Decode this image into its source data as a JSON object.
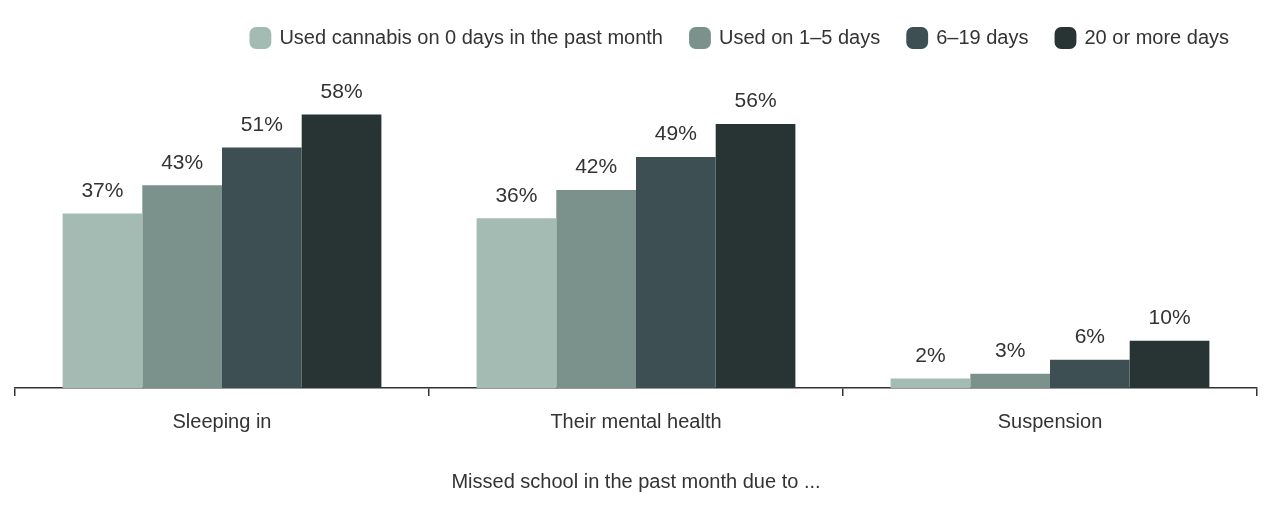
{
  "chart_data": {
    "type": "bar",
    "xlabel": "Missed school in the past month due to ...",
    "categories": [
      "Sleeping in",
      "Their mental health",
      "Suspension"
    ],
    "legend": "top",
    "grid": false,
    "series": [
      {
        "name": "Used cannabis on 0 days in the past month",
        "color": "#a3bbb2",
        "values": [
          37,
          36,
          2
        ],
        "value_labels": [
          "37%",
          "36%",
          "2%"
        ]
      },
      {
        "name": "Used on 1–5 days",
        "color": "#7a928b",
        "values": [
          43,
          42,
          3
        ],
        "value_labels": [
          "43%",
          "42%",
          "3%"
        ]
      },
      {
        "name": "6–19 days",
        "color": "#3e4f54",
        "values": [
          51,
          49,
          6
        ],
        "value_labels": [
          "51%",
          "49%",
          "6%"
        ]
      },
      {
        "name": "20 or more days",
        "color": "#283333",
        "values": [
          58,
          56,
          10
        ],
        "value_labels": [
          "58%",
          "56%",
          "10%"
        ]
      }
    ]
  }
}
